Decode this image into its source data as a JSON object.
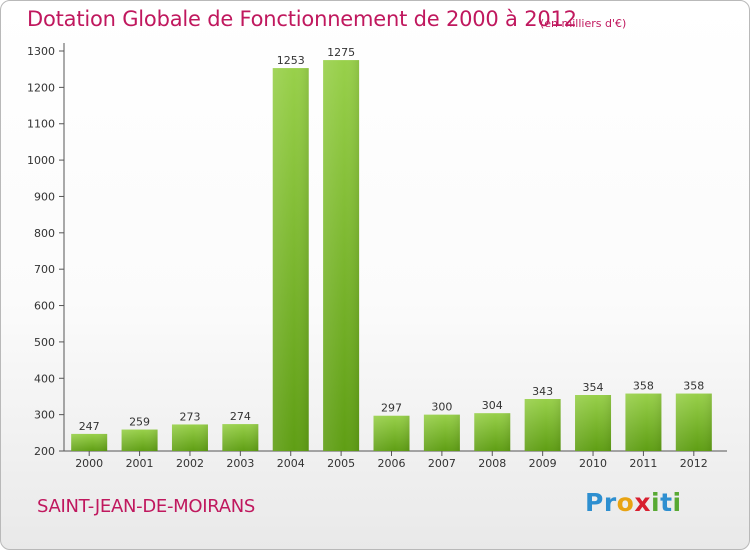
{
  "chart_data": {
    "type": "bar",
    "title": "Dotation Globale de Fonctionnement de 2000 à 2012",
    "subtitle": "(en milliers d'€)",
    "categories": [
      "2000",
      "2001",
      "2002",
      "2003",
      "2004",
      "2005",
      "2006",
      "2007",
      "2008",
      "2009",
      "2010",
      "2011",
      "2012"
    ],
    "values": [
      247,
      259,
      273,
      274,
      1253,
      1275,
      297,
      300,
      304,
      343,
      354,
      358,
      358
    ],
    "xlabel": "",
    "ylabel": "",
    "ylim": [
      200,
      1300
    ],
    "yticks": [
      200,
      300,
      400,
      500,
      600,
      700,
      800,
      900,
      1000,
      1100,
      1200,
      1300
    ],
    "grid": false,
    "bar_color": "#7fba2a"
  },
  "footer": {
    "commune": "SAINT-JEAN-DE-MOIRANS",
    "brand_letters": [
      {
        "ch": "P",
        "color": "#2e8fd0"
      },
      {
        "ch": "r",
        "color": "#2e8fd0"
      },
      {
        "ch": "o",
        "color": "#e8a312"
      },
      {
        "ch": "x",
        "color": "#d81f2f"
      },
      {
        "ch": "i",
        "color": "#58a933"
      },
      {
        "ch": "t",
        "color": "#2e8fd0"
      },
      {
        "ch": "i",
        "color": "#58a933"
      }
    ]
  }
}
